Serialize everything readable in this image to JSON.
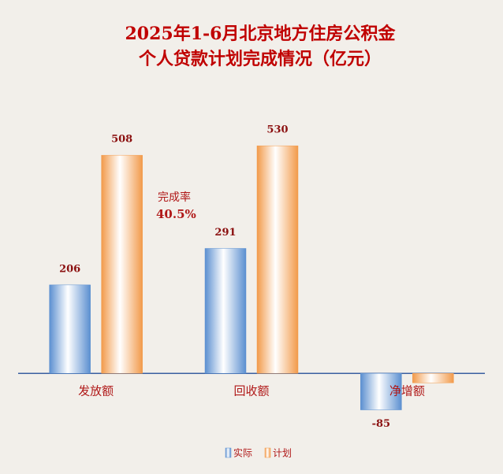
{
  "chart_data": {
    "type": "bar",
    "title": [
      "2025年1-6月北京地方住房公积金",
      "个人贷款计划完成情况（亿元）"
    ],
    "categories": [
      "发放额",
      "回收额",
      "净增额"
    ],
    "series": [
      {
        "name": "实际",
        "color": "#5b8fd0",
        "values": [
          206,
          291,
          -85
        ],
        "value_labels": [
          "206",
          "291",
          "-85"
        ]
      },
      {
        "name": "计划",
        "color": "#f29a4a",
        "values": [
          508,
          530,
          -22
        ],
        "value_labels": [
          "508",
          "530",
          null
        ]
      }
    ],
    "annotation": [
      "完成率",
      "40.5%"
    ],
    "ylim": [
      -150,
      600
    ],
    "grid": false,
    "legend": "bottom"
  }
}
